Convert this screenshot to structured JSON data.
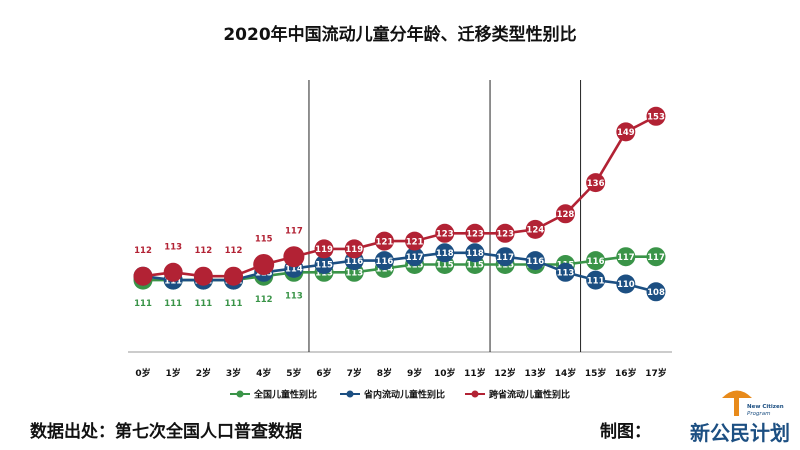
{
  "chart_data": {
    "type": "line",
    "title": "2020年中国流动儿童分年龄、迁移类型性别比",
    "categories": [
      "0岁",
      "1岁",
      "2岁",
      "3岁",
      "4岁",
      "5岁",
      "6岁",
      "7岁",
      "8岁",
      "9岁",
      "10岁",
      "11岁",
      "12岁",
      "13岁",
      "14岁",
      "15岁",
      "16岁",
      "17岁"
    ],
    "xlabel": "",
    "ylabel": "",
    "ylim": [
      70,
      170
    ],
    "grid": false,
    "legend_position": "bottom",
    "vertical_dividers_after": [
      "5岁",
      "11岁",
      "14岁"
    ],
    "series": [
      {
        "name": "全国儿童性别比",
        "color": "#3a9448",
        "values": [
          111,
          111,
          111,
          111,
          112,
          113,
          113,
          113,
          114,
          115,
          115,
          115,
          115,
          115,
          115,
          116,
          117,
          117
        ]
      },
      {
        "name": "省内流动儿童性别比",
        "color": "#1c4f82",
        "values": [
          112,
          111,
          111,
          111,
          113,
          114,
          115,
          116,
          116,
          117,
          118,
          118,
          117,
          116,
          113,
          111,
          110,
          108
        ]
      },
      {
        "name": "跨省流动儿童性别比",
        "color": "#b22234",
        "values": [
          112,
          113,
          112,
          112,
          115,
          117,
          119,
          119,
          121,
          121,
          123,
          123,
          123,
          124,
          128,
          136,
          149,
          153
        ]
      }
    ]
  },
  "footer": {
    "source": "数据出处：第七次全国人口普查数据",
    "made_by": "制图："
  },
  "logo": {
    "text": "新公民计划",
    "subtitle_line1": "New Citizen",
    "subtitle_line2": "Program"
  }
}
